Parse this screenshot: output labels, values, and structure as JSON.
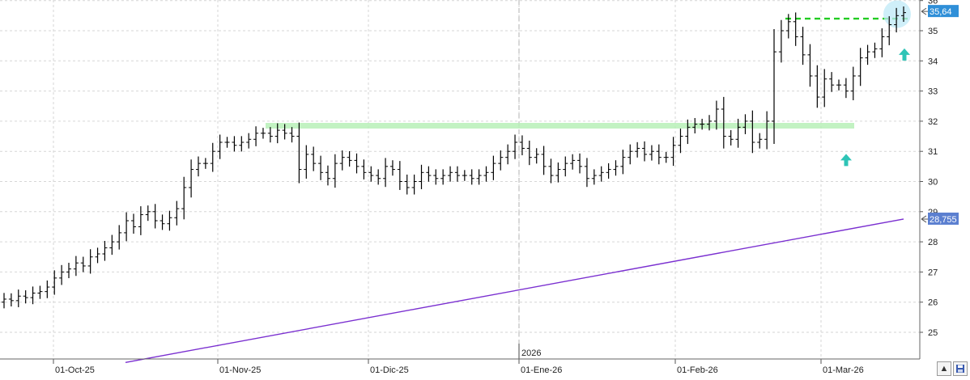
{
  "chart_data": {
    "type": "ohlc",
    "y_axis": {
      "ticks": [
        36,
        35,
        34,
        33,
        32,
        31,
        30,
        29,
        28,
        27,
        26,
        25
      ],
      "range": [
        24.2,
        36.2
      ],
      "position": "right"
    },
    "x_axis": {
      "tick_labels": [
        "01-Oct-25",
        "01-Nov-25",
        "01-Dic-25",
        "01-Ene-26",
        "01-Feb-26",
        "01-Mar-26"
      ],
      "year_marker": "2026"
    },
    "grid": true,
    "price_labels": [
      {
        "value": "35,64",
        "color": "#2f8fd8"
      },
      {
        "value": "28,755",
        "color": "#5b7fd0"
      }
    ],
    "moving_average": {
      "color": "#7a2fd0",
      "start": 24.0,
      "end": 28.755
    },
    "levels": [
      {
        "value": 35.4,
        "color": "#22cc22",
        "style": "dashed"
      },
      {
        "value": 31.85,
        "color": "#b8f0b8",
        "style": "solid"
      }
    ],
    "markers": [
      {
        "type": "up-arrow",
        "color": "#2ec4b6",
        "value": 30.7
      },
      {
        "type": "up-arrow",
        "color": "#2ec4b6",
        "value": 34.2
      }
    ],
    "highlight": {
      "color": "#bfe9f7",
      "value": 35.55
    },
    "closes": [
      26.1,
      26.05,
      26.2,
      26.15,
      26.3,
      26.35,
      26.5,
      26.8,
      27.0,
      27.1,
      27.3,
      27.2,
      27.5,
      27.6,
      27.8,
      28.0,
      28.3,
      28.7,
      28.5,
      28.9,
      29.0,
      28.7,
      28.6,
      28.8,
      29.1,
      29.8,
      30.4,
      30.6,
      30.6,
      31.0,
      31.3,
      31.3,
      31.2,
      31.3,
      31.4,
      31.6,
      31.6,
      31.5,
      31.7,
      31.6,
      31.5,
      30.4,
      30.9,
      30.6,
      30.3,
      30.1,
      30.6,
      30.8,
      30.7,
      30.5,
      30.3,
      30.2,
      30.1,
      30.5,
      30.4,
      30.0,
      29.8,
      30.0,
      30.3,
      30.2,
      30.1,
      30.2,
      30.3,
      30.2,
      30.2,
      30.1,
      30.2,
      30.3,
      30.6,
      30.8,
      31.0,
      31.3,
      31.1,
      30.8,
      30.9,
      30.5,
      30.2,
      30.4,
      30.6,
      30.7,
      30.5,
      30.1,
      30.2,
      30.3,
      30.4,
      30.5,
      30.8,
      31.0,
      31.1,
      30.9,
      31.0,
      30.8,
      30.8,
      31.2,
      31.5,
      31.8,
      31.9,
      31.9,
      32.0,
      32.4,
      31.5,
      31.4,
      31.8,
      32.0,
      31.3,
      31.4,
      32.0,
      34.3,
      35.0,
      35.3,
      34.8,
      34.2,
      33.5,
      32.8,
      33.4,
      33.2,
      33.2,
      33.0,
      33.5,
      34.1,
      34.3,
      34.4,
      34.8,
      35.2,
      35.5,
      35.6
    ]
  }
}
